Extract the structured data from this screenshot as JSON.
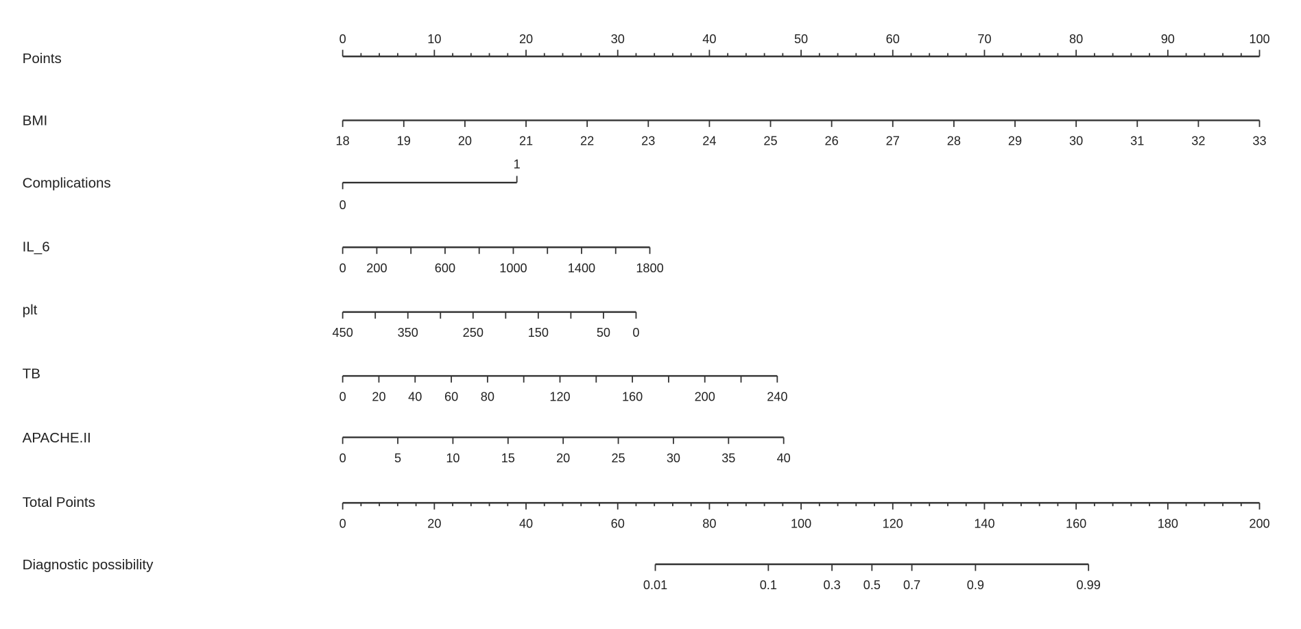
{
  "chart_data": {
    "type": "nomogram",
    "title": "",
    "colors": {
      "line": "#333333",
      "text": "#222222",
      "background": "#ffffff"
    },
    "axes": [
      {
        "name": "Points",
        "scale": "linear",
        "value_range": [
          0,
          100
        ],
        "points_range": [
          0,
          100
        ],
        "tick_values": [
          0,
          10,
          20,
          30,
          40,
          50,
          60,
          70,
          80,
          90,
          100
        ],
        "minor_step": 2,
        "labels": [
          "0",
          "10",
          "20",
          "30",
          "40",
          "50",
          "60",
          "70",
          "80",
          "90",
          "100"
        ],
        "label_position": "above"
      },
      {
        "name": "BMI",
        "scale": "linear",
        "value_range": [
          18,
          33
        ],
        "points_range": [
          0,
          100
        ],
        "tick_values": [
          18,
          19,
          20,
          21,
          22,
          23,
          24,
          25,
          26,
          27,
          28,
          29,
          30,
          31,
          32,
          33
        ],
        "labels": [
          "18",
          "19",
          "20",
          "21",
          "22",
          "23",
          "24",
          "25",
          "26",
          "27",
          "28",
          "29",
          "30",
          "31",
          "32",
          "33"
        ],
        "label_position": "below"
      },
      {
        "name": "Complications",
        "scale": "linear",
        "value_range": [
          0,
          1
        ],
        "points_range": [
          0,
          19
        ],
        "tick_values": [
          0,
          1
        ],
        "labels": [
          "0",
          "1"
        ],
        "label_position": "alternate"
      },
      {
        "name": "IL_6",
        "scale": "linear",
        "value_range": [
          0,
          1800
        ],
        "points_range": [
          0,
          33.5
        ],
        "tick_values": [
          0,
          200,
          400,
          600,
          800,
          1000,
          1200,
          1400,
          1600,
          1800
        ],
        "labels": [
          "0",
          "200",
          null,
          "600",
          null,
          "1000",
          null,
          "1400",
          null,
          "1800"
        ],
        "label_position": "below"
      },
      {
        "name": "plt",
        "scale": "linear",
        "value_range": [
          450,
          0
        ],
        "points_range": [
          0,
          32
        ],
        "tick_values": [
          450,
          400,
          350,
          300,
          250,
          200,
          150,
          100,
          50,
          0
        ],
        "labels": [
          "450",
          null,
          "350",
          null,
          "250",
          null,
          "150",
          null,
          "50",
          "0"
        ],
        "label_position": "below"
      },
      {
        "name": "TB",
        "scale": "linear",
        "value_range": [
          0,
          240
        ],
        "points_range": [
          0,
          47.4
        ],
        "tick_values": [
          0,
          20,
          40,
          60,
          80,
          100,
          120,
          140,
          160,
          180,
          200,
          220,
          240
        ],
        "labels": [
          "0",
          "20",
          "40",
          "60",
          "80",
          null,
          "120",
          null,
          "160",
          null,
          "200",
          null,
          "240"
        ],
        "label_position": "below"
      },
      {
        "name": "APACHE.II",
        "scale": "linear",
        "value_range": [
          0,
          40
        ],
        "points_range": [
          0,
          48.1
        ],
        "tick_values": [
          0,
          5,
          10,
          15,
          20,
          25,
          30,
          35,
          40
        ],
        "labels": [
          "0",
          "5",
          "10",
          "15",
          "20",
          "25",
          "30",
          "35",
          "40"
        ],
        "label_position": "below"
      },
      {
        "name": "Total Points",
        "scale": "linear",
        "value_range": [
          0,
          200
        ],
        "points_range": [
          0,
          200
        ],
        "tick_values": [
          0,
          20,
          40,
          60,
          80,
          100,
          120,
          140,
          160,
          180,
          200
        ],
        "minor_step": 4,
        "labels": [
          "0",
          "20",
          "40",
          "60",
          "80",
          "100",
          "120",
          "140",
          "160",
          "180",
          "200"
        ],
        "label_position": "below"
      },
      {
        "name": "Diagnostic possibility",
        "scale": "logit",
        "value_range": [
          0.01,
          0.99
        ],
        "total_points_range": [
          68.2,
          162.7
        ],
        "tick_values": [
          0.01,
          0.1,
          0.3,
          0.5,
          0.7,
          0.9,
          0.99
        ],
        "labels": [
          "0.01",
          "0.1",
          "0.3",
          "0.5",
          "0.7",
          "0.9",
          "0.99"
        ],
        "label_position": "below"
      }
    ]
  }
}
